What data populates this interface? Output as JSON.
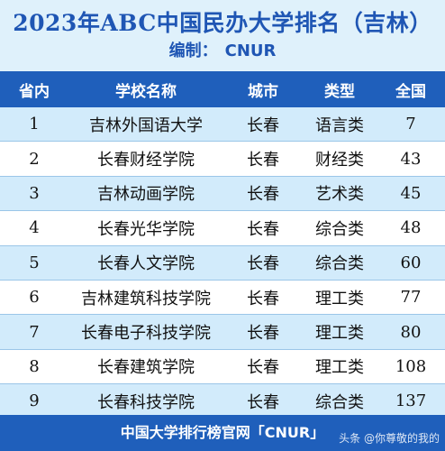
{
  "header": {
    "title": "2023年ABC中国民办大学排名（吉林）",
    "editor_label": "编制：",
    "editor_value": "CNUR"
  },
  "table": {
    "columns": [
      "省内",
      "学校名称",
      "城市",
      "类型",
      "全国"
    ],
    "rows": [
      [
        "1",
        "吉林外国语大学",
        "长春",
        "语言类",
        "7"
      ],
      [
        "2",
        "长春财经学院",
        "长春",
        "财经类",
        "43"
      ],
      [
        "3",
        "吉林动画学院",
        "长春",
        "艺术类",
        "45"
      ],
      [
        "4",
        "长春光华学院",
        "长春",
        "综合类",
        "48"
      ],
      [
        "5",
        "长春人文学院",
        "长春",
        "综合类",
        "60"
      ],
      [
        "6",
        "吉林建筑科技学院",
        "长春",
        "理工类",
        "77"
      ],
      [
        "7",
        "长春电子科技学院",
        "长春",
        "理工类",
        "80"
      ],
      [
        "8",
        "长春建筑学院",
        "长春",
        "理工类",
        "108"
      ],
      [
        "9",
        "长春科技学院",
        "长春",
        "综合类",
        "137"
      ]
    ]
  },
  "footer": {
    "text": "中国大学排行榜官网「CNUR」",
    "watermark": "头条 @你尊敬的我的"
  },
  "colors": {
    "accent": "#1f5fbb",
    "header_bg": "#dff1fb",
    "row_stripe": "#d2ebfb"
  }
}
